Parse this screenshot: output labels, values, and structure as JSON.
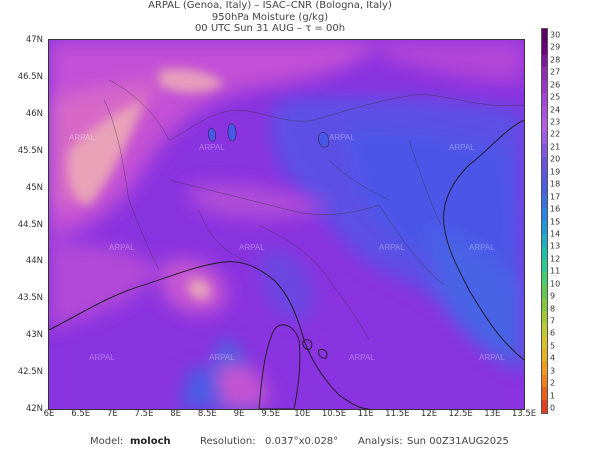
{
  "header": {
    "line1": "ARPAL (Genoa, Italy)  –  ISAC–CNR (Bologna, Italy)",
    "line2": "950hPa Moisture (g/kg)",
    "line3": "00 UTC Sun 31 AUG  –  τ = 00h"
  },
  "map": {
    "lat_ticks": [
      "47N",
      "46.5N",
      "46N",
      "45.5N",
      "45N",
      "44.5N",
      "44N",
      "43.5N",
      "43N",
      "42.5N",
      "42N"
    ],
    "lon_ticks": [
      "6E",
      "6.5E",
      "7E",
      "7.5E",
      "8E",
      "8.5E",
      "9E",
      "9.5E",
      "10E",
      "10.5E",
      "11E",
      "11.5E",
      "12E",
      "12.5E",
      "13E",
      "13.5E"
    ],
    "watermark": "ARPAL",
    "colors": {
      "low": "#3a5fe0",
      "mid": "#8a33e0",
      "high": "#d05ad0",
      "peak": "#e8a6b4"
    }
  },
  "colorbar": {
    "labels": [
      "30",
      "29",
      "28",
      "27",
      "26",
      "25",
      "24",
      "23",
      "22",
      "21",
      "20",
      "19",
      "18",
      "17",
      "16",
      "15",
      "14",
      "13",
      "12",
      "11",
      "10",
      "9",
      "8",
      "7",
      "6",
      "5",
      "4",
      "3",
      "2",
      "1",
      "0"
    ]
  },
  "footer": {
    "model_label": "Model:",
    "model_value": "moloch",
    "resolution_label": "Resolution:",
    "resolution_value": "0.037°x0.028°",
    "analysis_label": "Analysis:",
    "analysis_value": "Sun 00Z31AUG2025"
  }
}
